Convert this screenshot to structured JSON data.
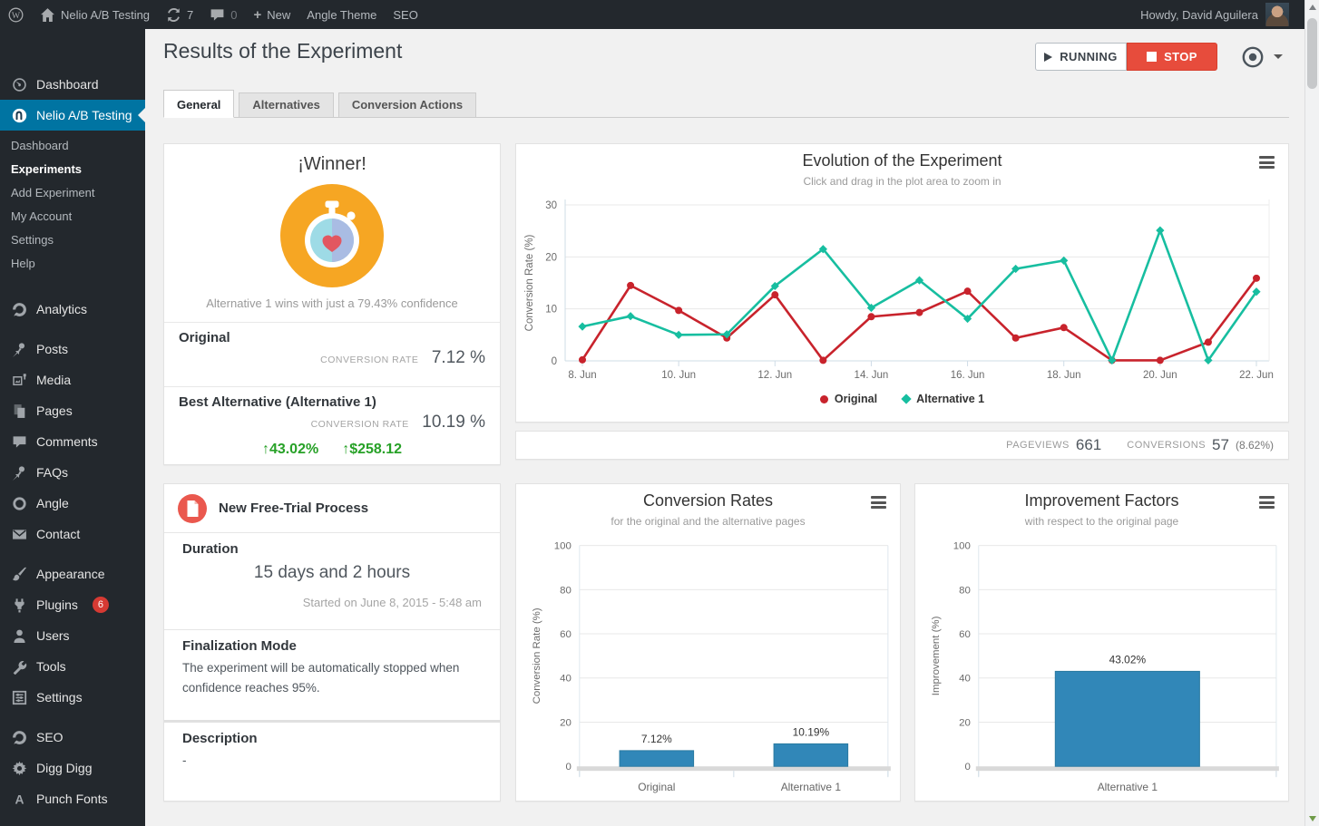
{
  "admin_bar": {
    "site_name": "Nelio A/B Testing",
    "updates": "7",
    "comments": "0",
    "new": "New",
    "menu_theme": "Angle Theme",
    "menu_seo": "SEO",
    "howdy": "Howdy, David Aguilera"
  },
  "sidebar": {
    "items": [
      {
        "label": "Dashboard",
        "icon": "dashboard-icon"
      },
      {
        "label": "Nelio A/B Testing",
        "icon": "nelio-icon",
        "active": true,
        "submenu": [
          {
            "label": "Dashboard"
          },
          {
            "label": "Experiments",
            "current": true
          },
          {
            "label": "Add Experiment"
          },
          {
            "label": "My Account"
          },
          {
            "label": "Settings"
          },
          {
            "label": "Help"
          }
        ]
      },
      {
        "label": "Analytics",
        "icon": "analytics-icon",
        "separator_before": true
      },
      {
        "label": "Posts",
        "icon": "pin-icon",
        "separator_before": true
      },
      {
        "label": "Media",
        "icon": "media-icon"
      },
      {
        "label": "Pages",
        "icon": "pages-icon"
      },
      {
        "label": "Comments",
        "icon": "comment-icon"
      },
      {
        "label": "FAQs",
        "icon": "pin-icon"
      },
      {
        "label": "Angle",
        "icon": "circle-icon"
      },
      {
        "label": "Contact",
        "icon": "mail-icon"
      },
      {
        "label": "Appearance",
        "icon": "brush-icon",
        "separator_before": true
      },
      {
        "label": "Plugins",
        "icon": "plug-icon",
        "badge": "6"
      },
      {
        "label": "Users",
        "icon": "user-icon"
      },
      {
        "label": "Tools",
        "icon": "wrench-icon"
      },
      {
        "label": "Settings",
        "icon": "sliders-icon"
      },
      {
        "label": "SEO",
        "icon": "seo-icon",
        "separator_before": true
      },
      {
        "label": "Digg Digg",
        "icon": "gear-icon"
      },
      {
        "label": "Punch Fonts",
        "icon": "letter-a-icon"
      }
    ]
  },
  "page": {
    "title": "Results of the Experiment",
    "running": "RUNNING",
    "stop": "STOP",
    "tabs": [
      "General",
      "Alternatives",
      "Conversion Actions"
    ]
  },
  "winner_card": {
    "title": "¡Winner!",
    "caption": "Alternative 1 wins with just a 79.43% confidence",
    "original_label": "Original",
    "rate_label": "CONVERSION RATE",
    "original_rate": "7.12 %",
    "best_label": "Best Alternative (Alternative 1)",
    "best_rate": "10.19 %",
    "up_arrow": "↑",
    "improvement": "43.02%",
    "revenue": "$258.12"
  },
  "stats": {
    "pageviews_label": "PAGEVIEWS",
    "pageviews": "661",
    "conversions_label": "CONVERSIONS",
    "conversions": "57",
    "conversion_rate": "(8.62%)"
  },
  "experiment_card": {
    "name": "New Free-Trial Process",
    "duration_label": "Duration",
    "duration": "15 days and 2 hours",
    "started": "Started on June 8, 2015 - 5:48 am",
    "finalization_label": "Finalization Mode",
    "finalization_text": "The experiment will be automatically stopped when confidence reaches 95%.",
    "description_label": "Description",
    "description": "-"
  },
  "colors": {
    "accent_blue": "#0074a2",
    "stop_red": "#e74c3c",
    "winner_orange": "#f6a623",
    "green": "#27a127",
    "series_red": "#c8232c",
    "series_teal": "#17bea0",
    "bar_blue": "#3187b8",
    "badge_red": "#d63a33"
  },
  "chart_data": [
    {
      "type": "line",
      "title": "Evolution of the Experiment",
      "subtitle": "Click and drag in the plot area to zoom in",
      "xlabel": "",
      "ylabel": "Conversion Rate (%)",
      "ylim": [
        0,
        30
      ],
      "yticks": [
        0,
        10,
        20,
        30
      ],
      "grid": true,
      "legend_position": "bottom",
      "x": [
        "8. Jun",
        "9. Jun",
        "10. Jun",
        "11. Jun",
        "12. Jun",
        "13. Jun",
        "14. Jun",
        "15. Jun",
        "16. Jun",
        "17. Jun",
        "18. Jun",
        "19. Jun",
        "20. Jun",
        "21. Jun",
        "22. Jun"
      ],
      "series": [
        {
          "name": "Original",
          "color": "#c8232c",
          "marker": "circle",
          "values": [
            0.2,
            14.5,
            9.7,
            4.4,
            12.7,
            0.1,
            8.5,
            9.3,
            13.4,
            4.4,
            6.4,
            0.1,
            0.1,
            3.6,
            15.9
          ]
        },
        {
          "name": "Alternative 1",
          "color": "#17bea0",
          "marker": "diamond",
          "values": [
            6.6,
            8.6,
            5.0,
            5.1,
            14.4,
            21.5,
            10.2,
            15.5,
            8.1,
            17.7,
            19.3,
            0.1,
            25.1,
            0.1,
            13.3
          ]
        }
      ]
    },
    {
      "type": "bar",
      "title": "Conversion Rates",
      "subtitle": "for the original and the alternative pages",
      "ylabel": "Conversion Rate (%)",
      "ylim": [
        0,
        100
      ],
      "yticks": [
        0,
        20,
        40,
        60,
        80,
        100
      ],
      "categories": [
        "Original",
        "Alternative 1"
      ],
      "values": [
        7.12,
        10.19
      ],
      "labels": [
        "7.12%",
        "10.19%"
      ],
      "bar_color": "#3187b8"
    },
    {
      "type": "bar",
      "title": "Improvement Factors",
      "subtitle": "with respect to the original page",
      "ylabel": "Improvement (%)",
      "ylim": [
        0,
        100
      ],
      "yticks": [
        0,
        20,
        40,
        60,
        80,
        100
      ],
      "categories": [
        "Alternative 1"
      ],
      "values": [
        43.02
      ],
      "labels": [
        "43.02%"
      ],
      "bar_color": "#3187b8"
    }
  ]
}
